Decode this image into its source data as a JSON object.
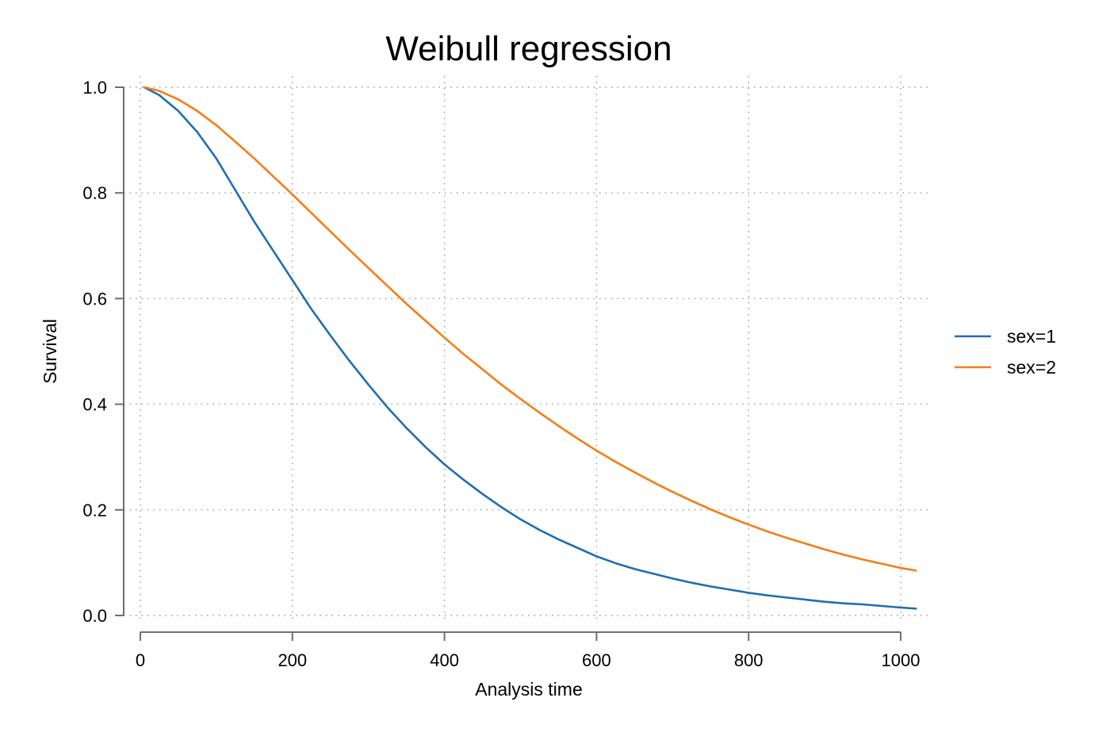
{
  "chart_data": {
    "type": "line",
    "title": "Weibull regression",
    "xlabel": "Analysis time",
    "ylabel": "Survival",
    "xlim": [
      0,
      1020
    ],
    "ylim": [
      0,
      1
    ],
    "xticks": [
      "0",
      "200",
      "400",
      "600",
      "800",
      "1000"
    ],
    "yticks": [
      "0.0",
      "0.2",
      "0.4",
      "0.6",
      "0.8",
      "1.0"
    ],
    "grid": true,
    "legend_position": "right",
    "series": [
      {
        "name": "sex=1",
        "color": "#1f6eb0",
        "x": [
          5,
          25,
          50,
          75,
          100,
          125,
          150,
          175,
          200,
          225,
          250,
          275,
          300,
          325,
          350,
          375,
          400,
          425,
          450,
          475,
          500,
          525,
          550,
          575,
          600,
          625,
          650,
          675,
          700,
          725,
          750,
          775,
          800,
          825,
          850,
          875,
          900,
          925,
          950,
          975,
          1000,
          1020
        ],
        "y": [
          1.0,
          0.985,
          0.955,
          0.915,
          0.865,
          0.805,
          0.745,
          0.69,
          0.635,
          0.58,
          0.53,
          0.482,
          0.437,
          0.394,
          0.355,
          0.319,
          0.286,
          0.257,
          0.23,
          0.205,
          0.182,
          0.162,
          0.144,
          0.128,
          0.112,
          0.099,
          0.088,
          0.079,
          0.07,
          0.062,
          0.055,
          0.049,
          0.043,
          0.038,
          0.034,
          0.03,
          0.026,
          0.023,
          0.021,
          0.018,
          0.015,
          0.013
        ]
      },
      {
        "name": "sex=2",
        "color": "#f57d15",
        "x": [
          5,
          25,
          50,
          75,
          100,
          125,
          150,
          175,
          200,
          225,
          250,
          275,
          300,
          325,
          350,
          375,
          400,
          425,
          450,
          475,
          500,
          525,
          550,
          575,
          600,
          625,
          650,
          675,
          700,
          725,
          750,
          775,
          800,
          825,
          850,
          875,
          900,
          925,
          950,
          975,
          1000,
          1020
        ],
        "y": [
          1.0,
          0.993,
          0.977,
          0.955,
          0.928,
          0.897,
          0.865,
          0.831,
          0.797,
          0.762,
          0.727,
          0.692,
          0.658,
          0.624,
          0.59,
          0.558,
          0.526,
          0.495,
          0.466,
          0.437,
          0.41,
          0.384,
          0.359,
          0.335,
          0.312,
          0.291,
          0.271,
          0.252,
          0.234,
          0.217,
          0.201,
          0.186,
          0.172,
          0.159,
          0.147,
          0.136,
          0.125,
          0.115,
          0.106,
          0.098,
          0.09,
          0.085
        ]
      }
    ]
  }
}
